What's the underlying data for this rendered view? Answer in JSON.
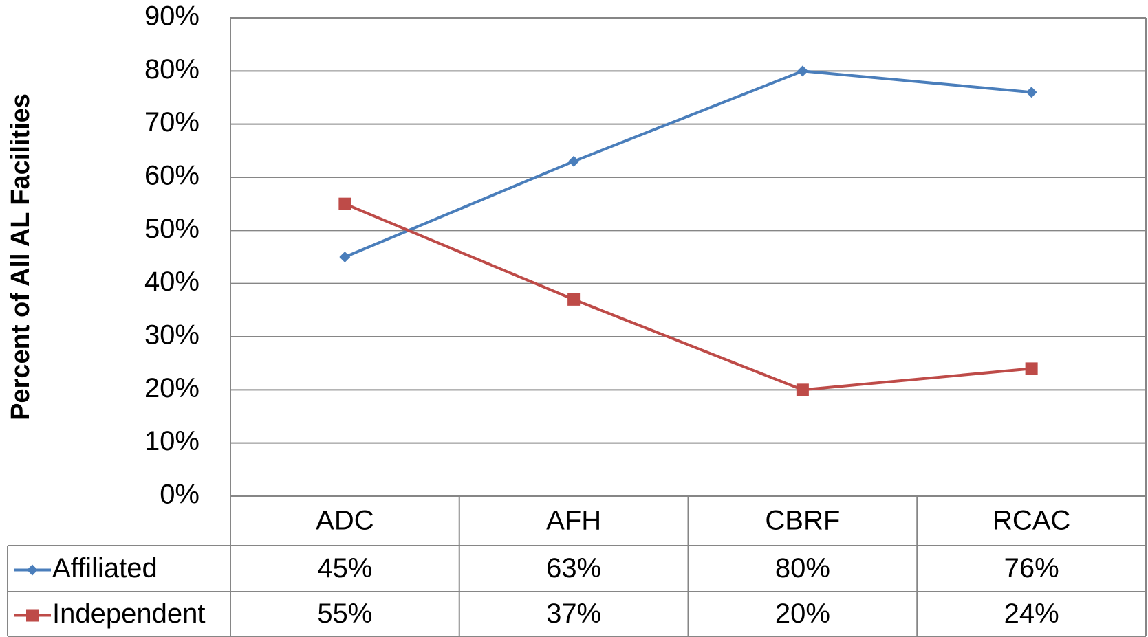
{
  "chart_data": {
    "type": "line",
    "y_label": "Percent of All AL Facilities",
    "categories": [
      "ADC",
      "AFH",
      "CBRF",
      "RCAC"
    ],
    "series": [
      {
        "name": "Affiliated",
        "color": "#4a7ebb",
        "marker": "diamond",
        "values": [
          45,
          63,
          80,
          76
        ],
        "value_labels": [
          "45%",
          "63%",
          "80%",
          "76%"
        ]
      },
      {
        "name": "Independent",
        "color": "#be4b48",
        "marker": "square",
        "values": [
          55,
          37,
          20,
          24
        ],
        "value_labels": [
          "55%",
          "37%",
          "20%",
          "24%"
        ]
      }
    ],
    "ylim": [
      0,
      90
    ],
    "yticks": [
      {
        "value": 0,
        "label": "0%"
      },
      {
        "value": 10,
        "label": "10%"
      },
      {
        "value": 20,
        "label": "20%"
      },
      {
        "value": 30,
        "label": "30%"
      },
      {
        "value": 40,
        "label": "40%"
      },
      {
        "value": 50,
        "label": "50%"
      },
      {
        "value": 60,
        "label": "60%"
      },
      {
        "value": 70,
        "label": "70%"
      },
      {
        "value": 80,
        "label": "80%"
      },
      {
        "value": 90,
        "label": "90%"
      }
    ],
    "grid": true,
    "data_table": true
  }
}
